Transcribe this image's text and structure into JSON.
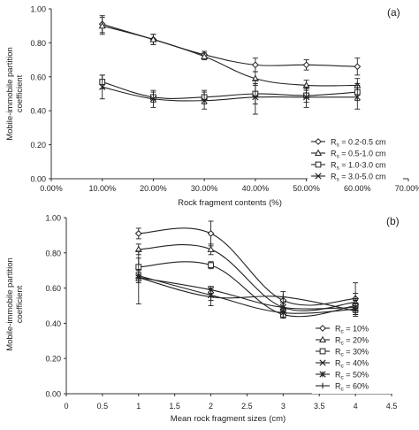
{
  "chart_data": [
    {
      "panel_label": "(a)",
      "type": "line",
      "xlabel": "Rock fragment contents (%)",
      "ylabel": [
        "Mobile-immobile partition",
        "coefficient"
      ],
      "xlim": [
        0,
        0.7
      ],
      "ylim": [
        0,
        1.0
      ],
      "xticks": [
        0,
        0.1,
        0.2,
        0.3,
        0.4,
        0.5,
        0.6,
        0.7
      ],
      "xtick_labels": [
        "0.00%",
        "10.00%",
        "20.00%",
        "30.00%",
        "40.00%",
        "50.00%",
        "60.00%",
        "70.00%"
      ],
      "yticks": [
        0,
        0.2,
        0.4,
        0.6,
        0.8,
        1.0
      ],
      "ytick_labels": [
        "0.00",
        "0.20",
        "0.40",
        "0.60",
        "0.80",
        "1.00"
      ],
      "grid": false,
      "legend_position": "lower-right",
      "x": [
        0.1,
        0.2,
        0.3,
        0.4,
        0.5,
        0.6
      ],
      "series": [
        {
          "name": "Rs = 0.2-0.5 cm",
          "name_main": "R",
          "name_sub": "s",
          "name_rest": " = 0.2-0.5 cm",
          "marker": "diamond",
          "values": [
            0.91,
            0.82,
            0.73,
            0.67,
            0.67,
            0.66
          ],
          "errors": [
            0.05,
            0.03,
            0.02,
            0.04,
            0.03,
            0.05
          ]
        },
        {
          "name": "Rs = 0.5-1.0 cm",
          "name_main": "R",
          "name_sub": "s",
          "name_rest": " = 0.5-1.0 cm",
          "marker": "triangle",
          "values": [
            0.9,
            0.82,
            0.72,
            0.59,
            0.55,
            0.55
          ],
          "errors": [
            0.05,
            0.03,
            0.02,
            0.04,
            0.03,
            0.04
          ]
        },
        {
          "name": "Rs = 1.0-3.0 cm",
          "name_main": "R",
          "name_sub": "s",
          "name_rest": " = 1.0-3.0 cm",
          "marker": "square",
          "values": [
            0.57,
            0.48,
            0.48,
            0.5,
            0.49,
            0.51
          ],
          "errors": [
            0.04,
            0.03,
            0.04,
            0.06,
            0.04,
            0.05
          ]
        },
        {
          "name": "Rs = 3.0-5.0 cm",
          "name_main": "R",
          "name_sub": "s",
          "name_rest": " = 3.0-5.0 cm",
          "marker": "x",
          "values": [
            0.54,
            0.47,
            0.46,
            0.48,
            0.48,
            0.48
          ],
          "errors": [
            0.07,
            0.05,
            0.05,
            0.1,
            0.06,
            0.07
          ]
        }
      ]
    },
    {
      "panel_label": "(b)",
      "type": "line",
      "xlabel": "Mean rock fragment sizes (cm)",
      "ylabel": [
        "Mobile-immobile partition",
        "coefficient"
      ],
      "xlim": [
        0,
        4.5
      ],
      "ylim": [
        0,
        1.0
      ],
      "xticks": [
        0,
        0.5,
        1,
        1.5,
        2,
        2.5,
        3,
        3.5,
        4,
        4.5
      ],
      "xtick_labels": [
        "0",
        "0.5",
        "1",
        "1.5",
        "2",
        "2.5",
        "3",
        "3.5",
        "4",
        "4.5"
      ],
      "yticks": [
        0,
        0.2,
        0.4,
        0.6,
        0.8,
        1.0
      ],
      "ytick_labels": [
        "0.00",
        "0.20",
        "0.40",
        "0.60",
        "0.80",
        "1.00"
      ],
      "grid": false,
      "legend_position": "lower-right",
      "x": [
        1,
        2,
        3,
        4
      ],
      "series": [
        {
          "name": "Rc = 10%",
          "name_main": "R",
          "name_sub": "c",
          "name_rest": " = 10%",
          "marker": "diamond",
          "values": [
            0.91,
            0.91,
            0.53,
            0.54
          ],
          "errors": [
            0.03,
            0.07,
            0.02,
            0.09
          ]
        },
        {
          "name": "Rc = 20%",
          "name_main": "R",
          "name_sub": "c",
          "name_rest": " = 20%",
          "marker": "triangle",
          "values": [
            0.82,
            0.82,
            0.49,
            0.52
          ],
          "errors": [
            0.03,
            0.03,
            0.03,
            0.05
          ]
        },
        {
          "name": "Rc = 30%",
          "name_main": "R",
          "name_sub": "c",
          "name_rest": " = 30%",
          "marker": "square",
          "values": [
            0.72,
            0.73,
            0.45,
            0.5
          ],
          "errors": [
            0.05,
            0.02,
            0.02,
            0.04
          ]
        },
        {
          "name": "Rc = 40%",
          "name_main": "R",
          "name_sub": "c",
          "name_rest": " = 40%",
          "marker": "x",
          "values": [
            0.66,
            0.59,
            0.49,
            0.49
          ],
          "errors": [
            0.03,
            0.02,
            0.03,
            0.04
          ]
        },
        {
          "name": "Rc = 50%",
          "name_main": "R",
          "name_sub": "c",
          "name_rest": " = 50%",
          "marker": "asterisk",
          "values": [
            0.67,
            0.56,
            0.46,
            0.48
          ],
          "errors": [
            0.03,
            0.03,
            0.03,
            0.03
          ]
        },
        {
          "name": "Rc = 60%",
          "name_main": "R",
          "name_sub": "c",
          "name_rest": " = 60%",
          "marker": "plus",
          "values": [
            0.66,
            0.55,
            0.55,
            0.47
          ],
          "errors": [
            0.15,
            0.05,
            0.03,
            0.03
          ]
        }
      ]
    }
  ]
}
